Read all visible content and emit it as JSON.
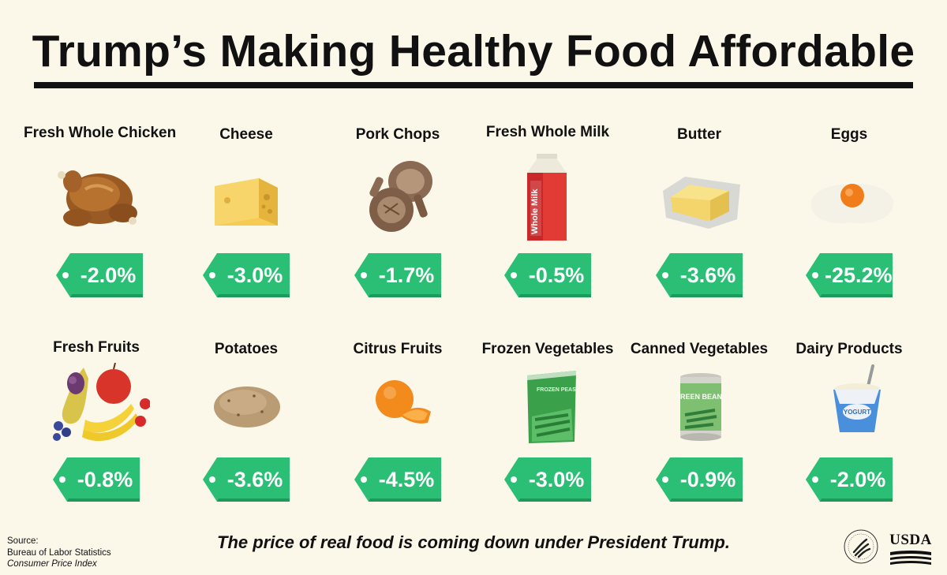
{
  "title": "Trump’s Making Healthy Food Affordable",
  "items": [
    {
      "name": "Fresh Whole Chicken",
      "change": "-2.0%",
      "icon": "roast-chicken-icon"
    },
    {
      "name": "Cheese",
      "change": "-3.0%",
      "icon": "cheese-wedge-icon"
    },
    {
      "name": "Pork Chops",
      "change": "-1.7%",
      "icon": "pork-chops-icon"
    },
    {
      "name": "Fresh Whole Milk",
      "change": "-0.5%",
      "icon": "milk-carton-icon",
      "label": "Whole Milk"
    },
    {
      "name": "Butter",
      "change": "-3.6%",
      "icon": "butter-icon"
    },
    {
      "name": "Eggs",
      "change": "-25.2%",
      "icon": "fried-egg-icon"
    },
    {
      "name": "Fresh Fruits",
      "change": "-0.8%",
      "icon": "fruit-assortment-icon"
    },
    {
      "name": "Potatoes",
      "change": "-3.6%",
      "icon": "potato-icon"
    },
    {
      "name": "Citrus Fruits",
      "change": "-4.5%",
      "icon": "orange-icon"
    },
    {
      "name": "Frozen Vegetables",
      "change": "-3.0%",
      "icon": "frozen-peas-bag-icon",
      "label": "FROZEN PEAS"
    },
    {
      "name": "Canned Vegetables",
      "change": "-0.9%",
      "icon": "green-beans-can-icon",
      "label": "GREEN BEANS"
    },
    {
      "name": "Dairy Products",
      "change": "-2.0%",
      "icon": "yogurt-cup-icon",
      "label": "YOGURT"
    }
  ],
  "tagline": "The price of real food is coming down under President Trump.",
  "source": {
    "heading": "Source:",
    "org": "Bureau of Labor Statistics",
    "series": "Consumer Price Index"
  },
  "logos": {
    "usda": "USDA",
    "hhs_icon": "hhs-seal-icon"
  },
  "colors": {
    "tag_green": "#2bbf75",
    "tag_shadow": "#1b9a59",
    "background": "#fbf8ea"
  }
}
